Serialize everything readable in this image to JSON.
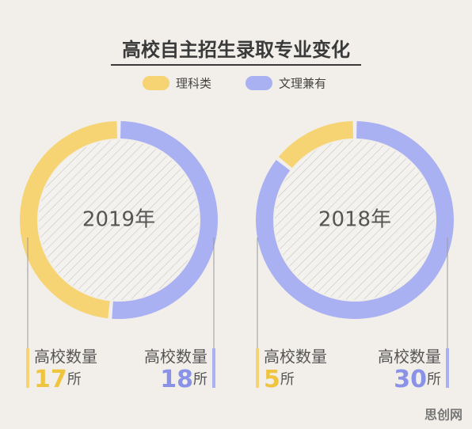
{
  "title": "高校自主招生录取专业变化",
  "count_label": "高校数量",
  "unit": "所",
  "watermark": "思创网",
  "chart_data": [
    {
      "type": "donut",
      "center_label": "2019年",
      "categories": [
        "理科类",
        "文理兼有"
      ],
      "values": [
        17,
        18
      ],
      "colors": [
        "#f6d473",
        "#aab1f2"
      ]
    },
    {
      "type": "donut",
      "center_label": "2018年",
      "categories": [
        "理科类",
        "文理兼有"
      ],
      "values": [
        5,
        30
      ],
      "colors": [
        "#f6d473",
        "#aab1f2"
      ]
    }
  ]
}
